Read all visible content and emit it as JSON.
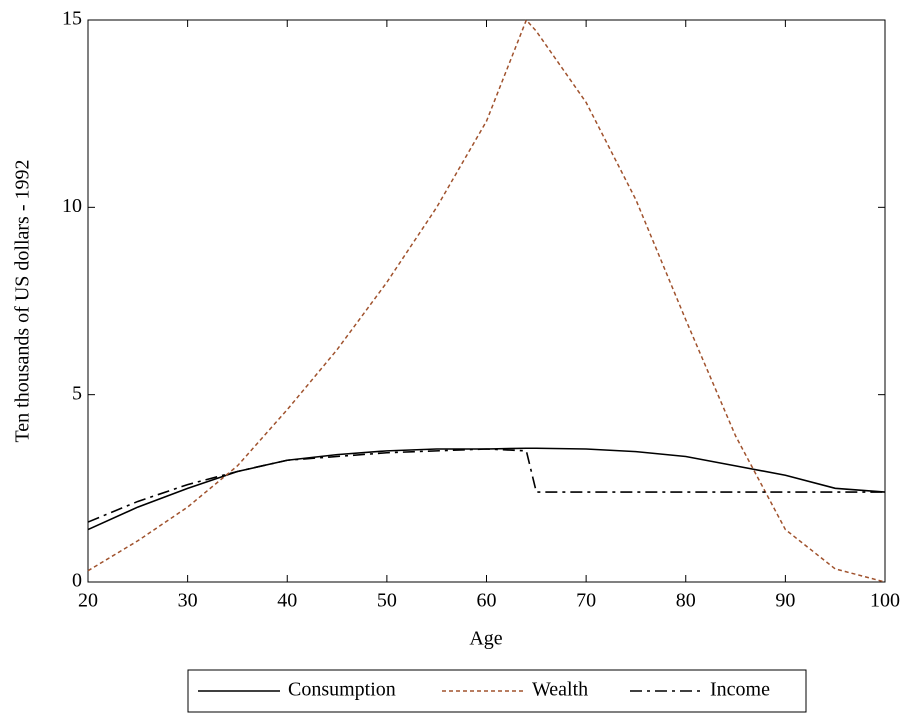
{
  "chart_data": {
    "type": "line",
    "xlabel": "Age",
    "ylabel": "Ten thousands of US dollars - 1992",
    "x": [
      20,
      25,
      30,
      35,
      40,
      45,
      50,
      55,
      60,
      64,
      65,
      70,
      75,
      80,
      85,
      90,
      95,
      100
    ],
    "series": [
      {
        "name": "Consumption",
        "color": "#000000",
        "dash": "solid",
        "values": [
          1.4,
          2.0,
          2.5,
          2.95,
          3.25,
          3.4,
          3.5,
          3.55,
          3.55,
          3.57,
          3.57,
          3.55,
          3.48,
          3.35,
          3.1,
          2.85,
          2.5,
          2.4
        ]
      },
      {
        "name": "Wealth",
        "color": "#a0522d",
        "dash": "dotted",
        "values": [
          0.3,
          1.1,
          2.0,
          3.1,
          4.6,
          6.2,
          8.0,
          10.0,
          12.3,
          15.0,
          14.7,
          12.8,
          10.2,
          7.0,
          3.9,
          1.4,
          0.35,
          0.0
        ]
      },
      {
        "name": "Income",
        "color": "#000000",
        "dash": "dashdot",
        "values": [
          1.6,
          2.15,
          2.6,
          2.95,
          3.25,
          3.35,
          3.45,
          3.5,
          3.55,
          3.5,
          2.4,
          2.4,
          2.4,
          2.4,
          2.4,
          2.4,
          2.4,
          2.4
        ]
      }
    ],
    "xlim": [
      20,
      100
    ],
    "xticks": [
      20,
      30,
      40,
      50,
      60,
      70,
      80,
      90,
      100
    ],
    "ylim": [
      0,
      15
    ],
    "yticks": [
      0,
      5,
      10,
      15
    ],
    "grid": false,
    "legend": "bottom"
  }
}
